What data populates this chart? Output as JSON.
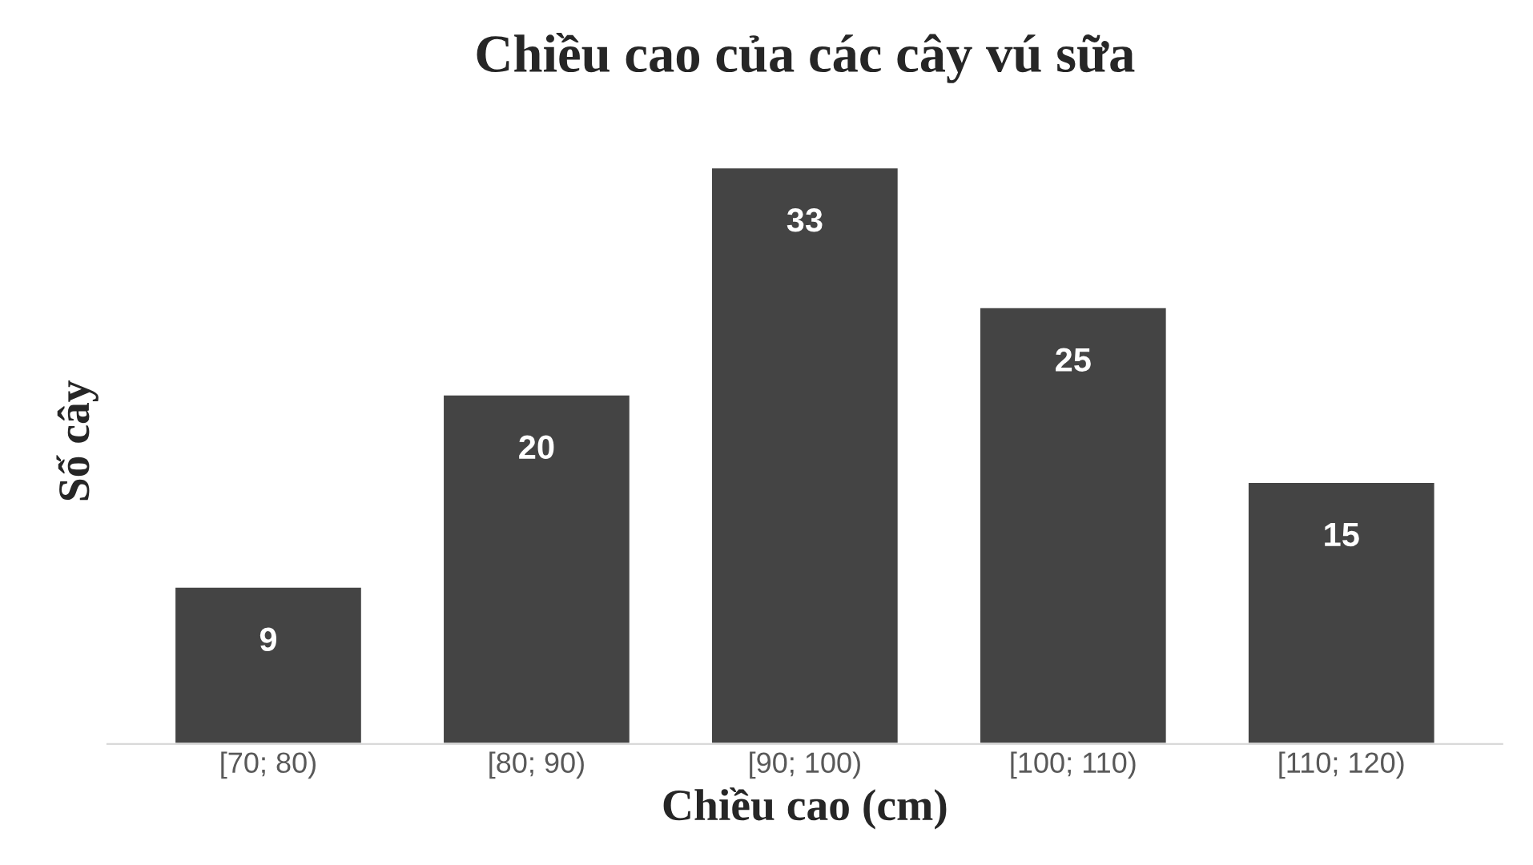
{
  "chart_data": {
    "type": "bar",
    "title": "Chiều cao của các cây vú sữa",
    "xlabel": "Chiều cao (cm)",
    "ylabel": "Số cây",
    "categories": [
      "[70; 80)",
      "[80; 90)",
      "[90; 100)",
      "[100; 110)",
      "[110; 120)"
    ],
    "values": [
      9,
      20,
      33,
      25,
      15
    ],
    "color": "#444444",
    "data_labels": true,
    "grid": false,
    "legend": false
  }
}
